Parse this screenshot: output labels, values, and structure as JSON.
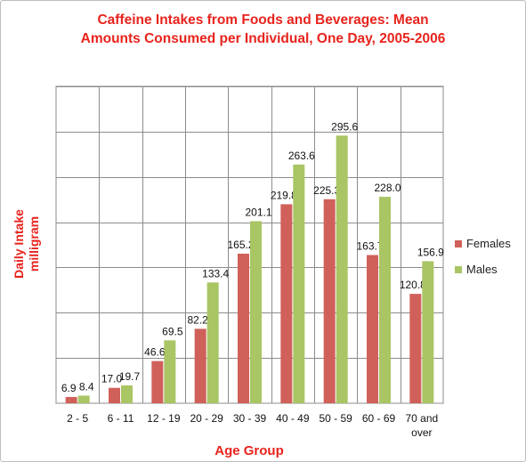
{
  "chart_data": {
    "type": "bar",
    "title_lines": [
      "Caffeine Intakes from Foods and Beverages: Mean",
      "Amounts Consumed per Individual, One Day, 2005-2006"
    ],
    "xlabel": "Age Group",
    "ylabel_lines": [
      "Daily Intake",
      "milligram"
    ],
    "categories": [
      [
        "2 - 5"
      ],
      [
        "6 - 11"
      ],
      [
        "12 - 19"
      ],
      [
        "20 - 29"
      ],
      [
        "30 - 39"
      ],
      [
        "40 - 49"
      ],
      [
        "50 - 59"
      ],
      [
        "60 - 69"
      ],
      [
        "70 and",
        "over"
      ]
    ],
    "series": [
      {
        "name": "Females",
        "color": "#d0605a",
        "values": [
          6.9,
          17.0,
          46.6,
          82.2,
          165.2,
          219.8,
          225.3,
          163.7,
          120.8
        ],
        "labels": [
          "6.9",
          "17.0",
          "46.6",
          "82.2",
          "165.2",
          "219.8",
          "225.3",
          "163.7",
          "120.8"
        ]
      },
      {
        "name": "Males",
        "color": "#a9c564",
        "values": [
          8.4,
          19.7,
          69.5,
          133.4,
          201.1,
          263.6,
          295.6,
          228.0,
          156.9
        ],
        "labels": [
          "8.4",
          "19.7",
          "69.5",
          "133.4",
          "201.1",
          "263.6",
          "295.6",
          "228.0",
          "156.9"
        ]
      }
    ],
    "ylim": [
      0,
      350
    ],
    "y_grid_step": 50,
    "grid": true,
    "legend_position": "right"
  }
}
